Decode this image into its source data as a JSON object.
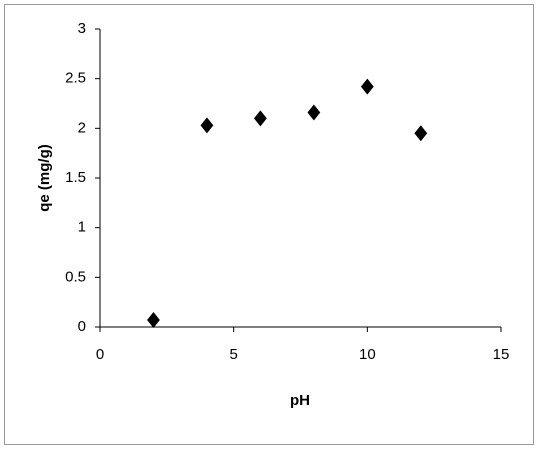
{
  "chart_data": {
    "type": "scatter",
    "x_label": "pH",
    "y_label": "qe (mg/g)",
    "x": [
      2,
      4,
      6,
      8,
      10,
      12
    ],
    "series": [
      {
        "color": "#000000",
        "values": [
          0.07,
          2.03,
          2.1,
          2.16,
          2.42,
          1.95
        ]
      }
    ],
    "xlim": [
      0,
      15
    ],
    "xticks": [
      0,
      5,
      10,
      15
    ],
    "ylim": [
      0,
      3
    ],
    "yticks": [
      0,
      0.5,
      1,
      1.5,
      2,
      2.5,
      3
    ]
  }
}
